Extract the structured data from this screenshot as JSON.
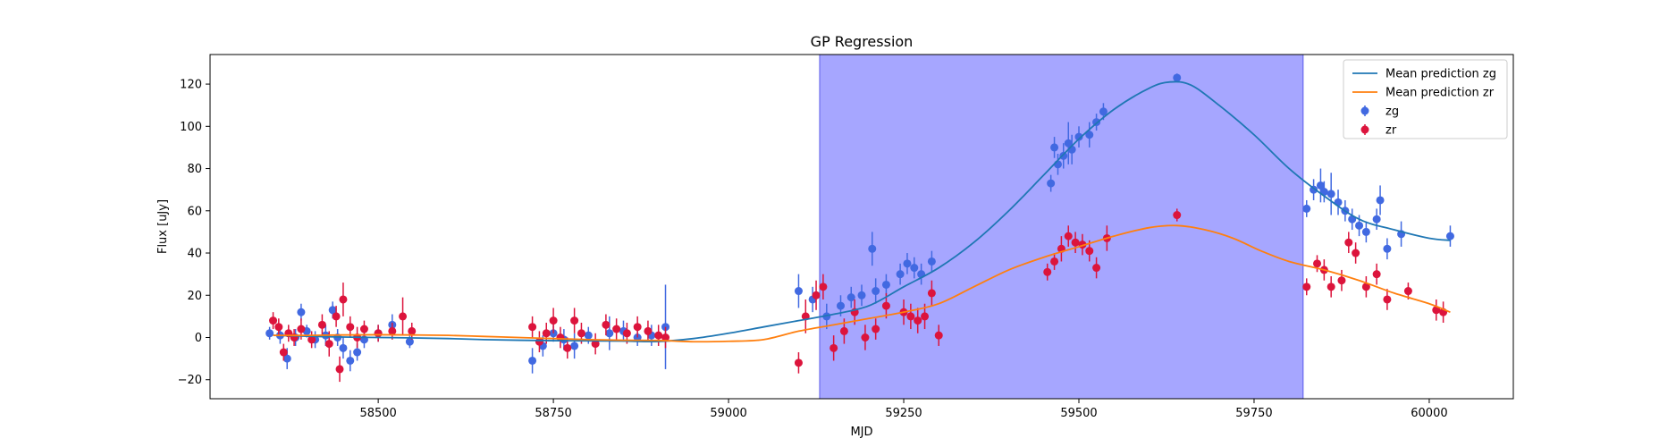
{
  "chart_data": {
    "type": "scatter",
    "title": "GP Regression",
    "xlabel": "MJD",
    "ylabel": "Flux [uJy]",
    "xlim": [
      58260,
      60120
    ],
    "ylim": [
      -29,
      134
    ],
    "xticks": [
      58500,
      58750,
      59000,
      59250,
      59500,
      59750,
      60000
    ],
    "yticks": [
      -20,
      0,
      20,
      40,
      60,
      80,
      100,
      120
    ],
    "grid": false,
    "legend_position": "top-right",
    "shaded_region": {
      "x_start": 59130,
      "x_end": 59820,
      "color": "#a6a6ff"
    },
    "lines": [
      {
        "name": "Mean prediction zg",
        "color": "#1f77b4",
        "x": [
          58350,
          58400,
          58450,
          58500,
          58550,
          58600,
          58650,
          58700,
          58750,
          58800,
          58850,
          58900,
          58950,
          59000,
          59050,
          59100,
          59150,
          59200,
          59250,
          59300,
          59350,
          59400,
          59450,
          59500,
          59550,
          59600,
          59630,
          59660,
          59700,
          59750,
          59800,
          59850,
          59900,
          59950,
          60000,
          60030
        ],
        "y": [
          1,
          0.6,
          0.2,
          0,
          -0.2,
          -0.5,
          -1,
          -1.3,
          -1.5,
          -1.6,
          -1.7,
          -1.9,
          -0.5,
          2,
          5,
          8,
          11,
          15,
          24,
          33,
          45,
          60,
          77,
          94,
          108,
          118,
          121,
          119.5,
          110,
          96,
          80,
          67,
          56,
          51,
          47,
          46
        ]
      },
      {
        "name": "Mean prediction zr",
        "color": "#ff7f0e",
        "x": [
          58350,
          58400,
          58450,
          58500,
          58550,
          58600,
          58650,
          58700,
          58750,
          58800,
          58850,
          58900,
          58950,
          59000,
          59050,
          59100,
          59150,
          59200,
          59250,
          59300,
          59350,
          59400,
          59450,
          59500,
          59550,
          59600,
          59640,
          59680,
          59720,
          59760,
          59800,
          59850,
          59900,
          59950,
          60000,
          60030
        ],
        "y": [
          1,
          1,
          1.2,
          1.3,
          1.2,
          1,
          0.5,
          0,
          -0.5,
          -1,
          -1.3,
          -1.4,
          -2,
          -1.8,
          -1,
          3,
          6,
          9,
          12,
          16,
          24,
          32,
          38,
          43,
          48,
          52,
          53,
          51,
          47,
          41,
          36,
          32,
          27,
          21,
          16,
          12
        ]
      }
    ],
    "series": [
      {
        "name": "zg",
        "color": "#4169e1",
        "x": [
          58345,
          58360,
          58370,
          58382,
          58390,
          58398,
          58410,
          58425,
          58435,
          58442,
          58450,
          58460,
          58470,
          58480,
          58500,
          58520,
          58545,
          58720,
          58735,
          58750,
          58765,
          58780,
          58800,
          58830,
          58850,
          58870,
          58890,
          58910,
          59100,
          59120,
          59140,
          59160,
          59175,
          59190,
          59205,
          59210,
          59225,
          59245,
          59255,
          59265,
          59275,
          59290,
          59460,
          59465,
          59470,
          59478,
          59485,
          59490,
          59500,
          59515,
          59525,
          59535,
          59640,
          59825,
          59835,
          59845,
          59850,
          59860,
          59870,
          59880,
          59890,
          59900,
          59910,
          59925,
          59930,
          59940,
          59960,
          60030
        ],
        "y": [
          2,
          1,
          -10,
          0,
          12,
          3,
          -1,
          1,
          13,
          0,
          -5,
          -11,
          -7,
          -1,
          2,
          6,
          -2,
          -11,
          -4,
          2,
          -1,
          -4,
          1,
          2,
          3,
          0,
          1,
          5,
          22,
          18,
          10,
          15,
          19,
          20,
          42,
          22,
          25,
          30,
          35,
          33,
          30,
          36,
          73,
          90,
          82,
          86,
          92,
          89,
          95,
          96,
          102,
          107,
          123,
          61,
          70,
          72,
          69,
          68,
          64,
          60,
          56,
          53,
          50,
          56,
          65,
          42,
          49,
          48
        ],
        "yerr": [
          3,
          4,
          5,
          4,
          4,
          3,
          4,
          5,
          4,
          4,
          5,
          5,
          4,
          4,
          4,
          5,
          3,
          6,
          5,
          4,
          5,
          6,
          4,
          8,
          5,
          4,
          5,
          20,
          8,
          6,
          6,
          5,
          5,
          5,
          8,
          6,
          5,
          5,
          5,
          5,
          5,
          5,
          4,
          5,
          5,
          6,
          10,
          7,
          5,
          6,
          4,
          4,
          2,
          4,
          5,
          8,
          5,
          10,
          6,
          5,
          5,
          5,
          5,
          5,
          7,
          5,
          6,
          5
        ]
      },
      {
        "name": "zr",
        "color": "#dc143c",
        "x": [
          58350,
          58358,
          58365,
          58372,
          58380,
          58390,
          58405,
          58420,
          58430,
          58440,
          58445,
          58450,
          58460,
          58470,
          58480,
          58500,
          58520,
          58535,
          58548,
          58720,
          58730,
          58740,
          58750,
          58760,
          58770,
          58780,
          58790,
          58810,
          58825,
          58840,
          58855,
          58870,
          58885,
          58900,
          58910,
          59100,
          59110,
          59125,
          59135,
          59150,
          59165,
          59180,
          59195,
          59210,
          59225,
          59250,
          59260,
          59270,
          59280,
          59290,
          59300,
          59455,
          59465,
          59475,
          59485,
          59495,
          59505,
          59515,
          59525,
          59540,
          59640,
          59825,
          59840,
          59850,
          59860,
          59875,
          59885,
          59895,
          59910,
          59925,
          59940,
          59970,
          60010,
          60020
        ],
        "y": [
          8,
          5,
          -7,
          2,
          0,
          4,
          -1,
          6,
          -3,
          10,
          -15,
          18,
          5,
          0,
          4,
          2,
          3,
          10,
          3,
          5,
          -2,
          2,
          8,
          0,
          -5,
          8,
          2,
          -3,
          6,
          4,
          2,
          5,
          3,
          1,
          0,
          -12,
          10,
          20,
          24,
          -5,
          3,
          12,
          0,
          4,
          15,
          12,
          10,
          8,
          10,
          21,
          1,
          31,
          36,
          42,
          48,
          45,
          44,
          41,
          33,
          47,
          58,
          24,
          35,
          32,
          24,
          27,
          45,
          40,
          24,
          30,
          18,
          22,
          13,
          12
        ],
        "yerr": [
          4,
          4,
          4,
          4,
          4,
          5,
          4,
          5,
          6,
          5,
          6,
          8,
          5,
          5,
          4,
          4,
          4,
          9,
          4,
          5,
          5,
          5,
          6,
          5,
          5,
          6,
          5,
          5,
          5,
          5,
          5,
          5,
          5,
          5,
          5,
          5,
          8,
          7,
          6,
          6,
          6,
          6,
          6,
          5,
          6,
          6,
          6,
          6,
          6,
          6,
          5,
          4,
          4,
          6,
          5,
          5,
          5,
          5,
          5,
          6,
          3,
          4,
          4,
          5,
          5,
          5,
          5,
          5,
          5,
          5,
          5,
          4,
          5,
          5
        ]
      }
    ]
  }
}
